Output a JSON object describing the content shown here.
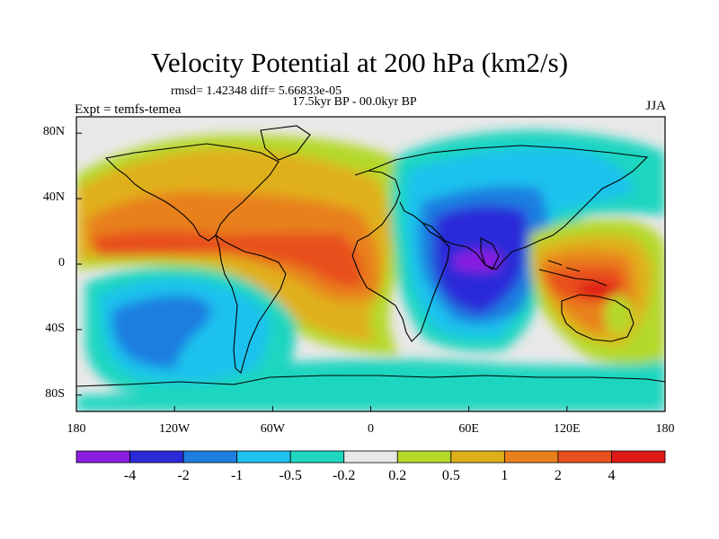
{
  "title": "Velocity Potential at 200 hPa (km2/s)",
  "stats_text": "rmsd= 1.42348 diff= 5.66833e-05",
  "period_text": "17.5kyr BP - 00.0kyr BP",
  "experiment_text": "Expt = temfs-temea",
  "season": "JJA",
  "axes": {
    "lat_ticks": [
      {
        "label": "80N",
        "lat": 80
      },
      {
        "label": "40N",
        "lat": 40
      },
      {
        "label": "0",
        "lat": 0
      },
      {
        "label": "40S",
        "lat": -40
      },
      {
        "label": "80S",
        "lat": -80
      }
    ],
    "lon_ticks": [
      {
        "label": "180",
        "lon": -180
      },
      {
        "label": "120W",
        "lon": -120
      },
      {
        "label": "60W",
        "lon": -60
      },
      {
        "label": "0",
        "lon": 0
      },
      {
        "label": "60E",
        "lon": 60
      },
      {
        "label": "120E",
        "lon": 120
      },
      {
        "label": "180",
        "lon": 180
      }
    ],
    "lat_range": [
      -90,
      90
    ],
    "lon_range": [
      -180,
      180
    ]
  },
  "colorbar": {
    "labels": [
      "-4",
      "-2",
      "-1",
      "-0.5",
      "-0.2",
      "0.2",
      "0.5",
      "1",
      "2",
      "4"
    ],
    "colors": [
      "#8a1de0",
      "#2a2ad8",
      "#1e7ee0",
      "#1ec2ee",
      "#1fd6c0",
      "#e8e8e8",
      "#b4d92a",
      "#e0b01a",
      "#e8801c",
      "#e8501c",
      "#e01818"
    ]
  }
}
